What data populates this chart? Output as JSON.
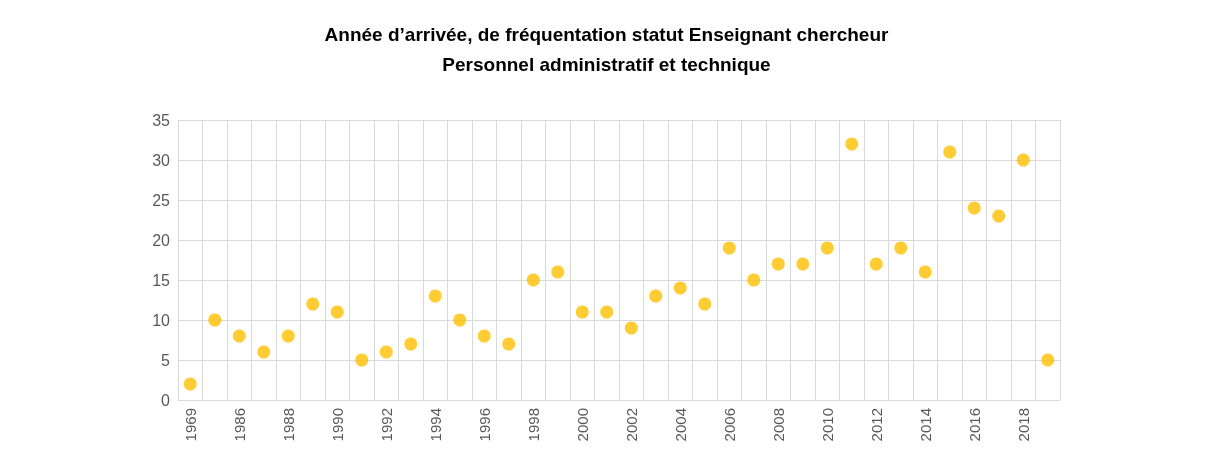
{
  "chart_data": {
    "type": "scatter",
    "title": "Année d’arrivée, de fréquentation statut Enseignant chercheur\nPersonnel administratif et technique",
    "categories": [
      "1969",
      null,
      "1986",
      null,
      "1988",
      null,
      "1990",
      null,
      "1992",
      null,
      "1994",
      null,
      "1996",
      null,
      "1998",
      null,
      "2000",
      null,
      "2002",
      null,
      "2004",
      null,
      "2006",
      null,
      "2008",
      null,
      "2010",
      null,
      "2012",
      null,
      "2014",
      null,
      "2016",
      null,
      "2018",
      null
    ],
    "values": [
      2,
      10,
      8,
      6,
      8,
      12,
      11,
      5,
      6,
      7,
      13,
      10,
      8,
      7,
      15,
      16,
      11,
      11,
      9,
      13,
      14,
      12,
      19,
      15,
      17,
      17,
      19,
      32,
      17,
      19,
      16,
      31,
      24,
      23,
      30,
      5
    ],
    "color": "#ffc000",
    "marker": "circle",
    "ylim": [
      0,
      35
    ],
    "yticks": [
      0,
      5,
      10,
      15,
      20,
      25,
      30,
      35
    ],
    "grid": true
  }
}
